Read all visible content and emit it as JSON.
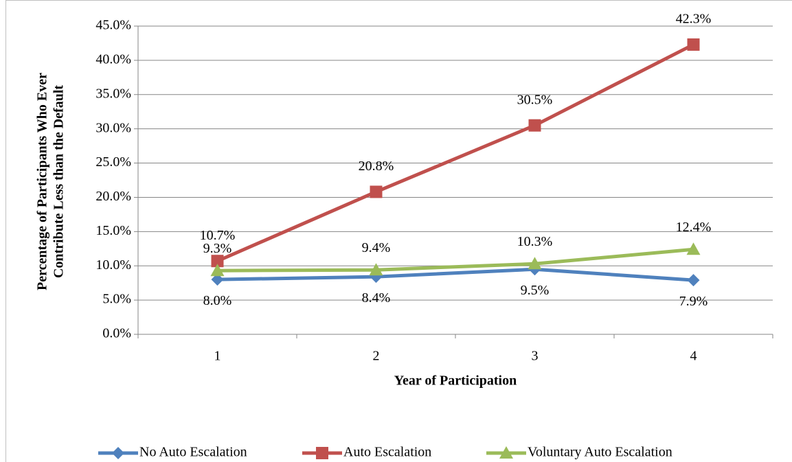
{
  "chart_data": {
    "type": "line",
    "y_label": [
      "Percentage of Participants Who Ever",
      "Contribute Less than the Default"
    ],
    "x_label": "Year of Participation",
    "categories": [
      "1",
      "2",
      "3",
      "4"
    ],
    "series": [
      {
        "name": "No Auto Escalation",
        "color": "#4f81bd",
        "marker": "diamond",
        "values": [
          8.0,
          8.4,
          9.5,
          7.9
        ],
        "value_labels": [
          "8.0%",
          "8.4%",
          "9.5%",
          "7.9%"
        ]
      },
      {
        "name": "Auto Escalation",
        "color": "#c0504d",
        "marker": "square",
        "values": [
          10.7,
          20.8,
          30.5,
          42.3
        ],
        "value_labels": [
          "10.7%",
          "20.8%",
          "30.5%",
          "42.3%"
        ]
      },
      {
        "name": "Voluntary Auto Escalation",
        "color": "#9bbb59",
        "marker": "triangle",
        "values": [
          9.3,
          9.4,
          10.3,
          12.4
        ],
        "value_labels": [
          "9.3%",
          "9.4%",
          "10.3%",
          "12.4%"
        ]
      }
    ],
    "ylim": [
      0,
      45
    ],
    "yticks": [
      {
        "value": 0,
        "label": "0.0%"
      },
      {
        "value": 5,
        "label": "5.0%"
      },
      {
        "value": 10,
        "label": "10.0%"
      },
      {
        "value": 15,
        "label": "15.0%"
      },
      {
        "value": 20,
        "label": "20.0%"
      },
      {
        "value": 25,
        "label": "25.0%"
      },
      {
        "value": 30,
        "label": "30.0%"
      },
      {
        "value": 35,
        "label": "35.0%"
      },
      {
        "value": 40,
        "label": "40.0%"
      },
      {
        "value": 45,
        "label": "45.0%"
      }
    ],
    "grid": true,
    "legend": "bottom"
  }
}
